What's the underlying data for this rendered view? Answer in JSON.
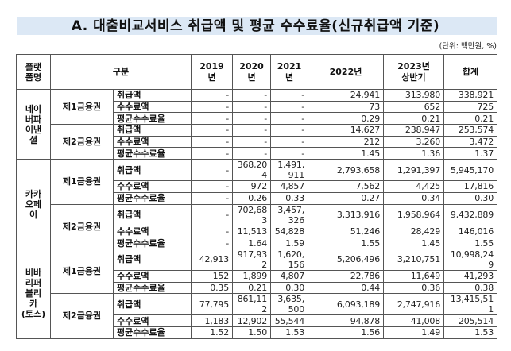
{
  "header": {
    "title": "A. 대출비교서비스 취급액 및 평균 수수료율(신규취급액 기준)",
    "unit": "(단위: 백만원, %)",
    "title_band_color": "#dce8f5"
  },
  "table": {
    "columns": {
      "platform": "플랫\n폼명",
      "category": "구분",
      "y2019": "2019\n년",
      "y2020": "2020\n년",
      "y2021": "2021\n년",
      "y2022": "2022년",
      "y2023h1": "2023년\n상반기",
      "total": "합계"
    },
    "platforms": [
      {
        "name": "네이\n버파\n이낸\n셜",
        "groups": [
          {
            "name": "제1금융권",
            "rows": [
              {
                "label": "취급액",
                "v": [
                  "-",
                  "-",
                  "-",
                  "24,941",
                  "313,980",
                  "338,921"
                ]
              },
              {
                "label": "수수료액",
                "v": [
                  "-",
                  "-",
                  "-",
                  "73",
                  "652",
                  "725"
                ]
              },
              {
                "label": "평균수수료율",
                "v": [
                  "-",
                  "-",
                  "-",
                  "0.29",
                  "0.21",
                  "0.21"
                ]
              }
            ]
          },
          {
            "name": "제2금융권",
            "rows": [
              {
                "label": "취급액",
                "v": [
                  "-",
                  "-",
                  "-",
                  "14,627",
                  "238,947",
                  "253,574"
                ]
              },
              {
                "label": "수수료액",
                "v": [
                  "-",
                  "-",
                  "-",
                  "212",
                  "3,260",
                  "3,472"
                ]
              },
              {
                "label": "평균수수료율",
                "v": [
                  "-",
                  "-",
                  "-",
                  "1.45",
                  "1.36",
                  "1.37"
                ]
              }
            ]
          }
        ]
      },
      {
        "name": "카카\n오페\n이",
        "groups": [
          {
            "name": "제1금융권",
            "rows": [
              {
                "label": "취급액",
                "v": [
                  "-",
                  "368,204",
                  "1,491,911",
                  "2,793,658",
                  "1,291,397",
                  "5,945,170"
                ]
              },
              {
                "label": "수수료액",
                "v": [
                  "-",
                  "972",
                  "4,857",
                  "7,562",
                  "4,425",
                  "17,816"
                ]
              },
              {
                "label": "평균수수료율",
                "v": [
                  "-",
                  "0.26",
                  "0.33",
                  "0.27",
                  "0.34",
                  "0.30"
                ]
              }
            ]
          },
          {
            "name": "제2금융권",
            "rows": [
              {
                "label": "취급액",
                "v": [
                  "-",
                  "702,683",
                  "3,457,326",
                  "3,313,916",
                  "1,958,964",
                  "9,432,889"
                ]
              },
              {
                "label": "수수료액",
                "v": [
                  "-",
                  "11,513",
                  "54,828",
                  "51,246",
                  "28,429",
                  "146,016"
                ]
              },
              {
                "label": "평균수수료율",
                "v": [
                  "-",
                  "1.64",
                  "1.59",
                  "1.55",
                  "1.45",
                  "1.55"
                ]
              }
            ]
          }
        ]
      },
      {
        "name": "비바\n리퍼\n블리\n카\n(토스)",
        "groups": [
          {
            "name": "제1금융권",
            "rows": [
              {
                "label": "취급액",
                "v": [
                  "42,913",
                  "917,932",
                  "1,620,156",
                  "5,206,496",
                  "3,210,751",
                  "10,998,249"
                ]
              },
              {
                "label": "수수료액",
                "v": [
                  "152",
                  "1,899",
                  "4,807",
                  "22,786",
                  "11,649",
                  "41,293"
                ]
              },
              {
                "label": "평균수수료율",
                "v": [
                  "0.35",
                  "0.21",
                  "0.30",
                  "0.44",
                  "0.36",
                  "0.38"
                ]
              }
            ]
          },
          {
            "name": "제2금융권",
            "rows": [
              {
                "label": "취급액",
                "v": [
                  "77,795",
                  "861,112",
                  "3,635,500",
                  "6,093,189",
                  "2,747,916",
                  "13,415,511"
                ]
              },
              {
                "label": "수수료액",
                "v": [
                  "1,183",
                  "12,902",
                  "55,544",
                  "94,878",
                  "41,008",
                  "205,514"
                ]
              },
              {
                "label": "평균수수료율",
                "v": [
                  "1.52",
                  "1.50",
                  "1.53",
                  "1.56",
                  "1.49",
                  "1.53"
                ]
              }
            ]
          }
        ]
      }
    ]
  }
}
